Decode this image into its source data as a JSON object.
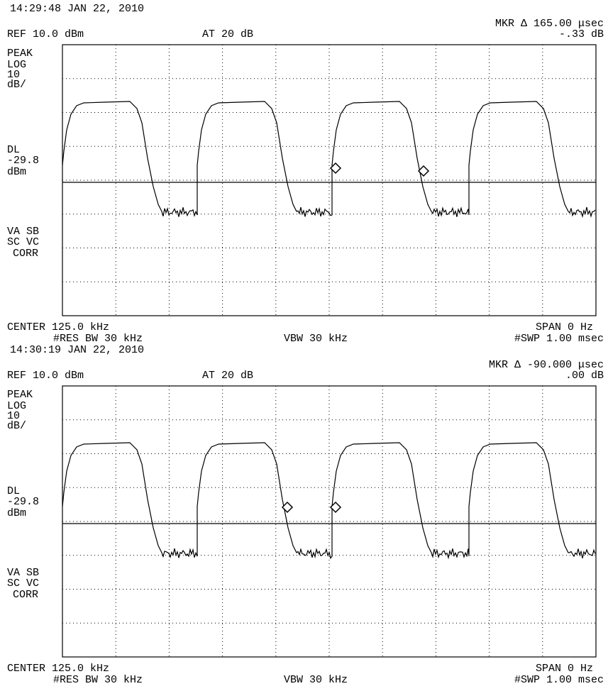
{
  "screens": [
    {
      "timestamp": "14:29:48 JAN 22, 2010",
      "marker_label": "MKR Δ 165.00 μsec",
      "marker_value": "-.33 dB",
      "ref": "REF 10.0 dBm",
      "atten": "AT 20 dB",
      "left_labels": [
        "PEAK",
        "LOG",
        "10",
        "dB/",
        "DL",
        "-29.8",
        "dBm",
        "VA SB",
        "SC VC",
        "CORR"
      ],
      "center": "CENTER 125.0 kHz",
      "span": "SPAN 0 Hz",
      "rbw": "#RES BW 30 kHz",
      "vbw": "VBW 30 kHz",
      "sweep": "#SWP 1.00 msec"
    },
    {
      "timestamp": "14:30:19 JAN 22, 2010",
      "marker_label": "MKR Δ -90.000 μsec",
      "marker_value": ".00 dB",
      "ref": "REF 10.0 dBm",
      "atten": "AT 20 dB",
      "left_labels": [
        "PEAK",
        "LOG",
        "10",
        "dB/",
        "DL",
        "-29.8",
        "dBm",
        "VA SB",
        "SC VC",
        "CORR"
      ],
      "center": "CENTER 125.0 kHz",
      "span": "SPAN 0 Hz",
      "rbw": "#RES BW 30 kHz",
      "vbw": "VBW 30 kHz",
      "sweep": "#SWP 1.00 msec"
    }
  ]
}
